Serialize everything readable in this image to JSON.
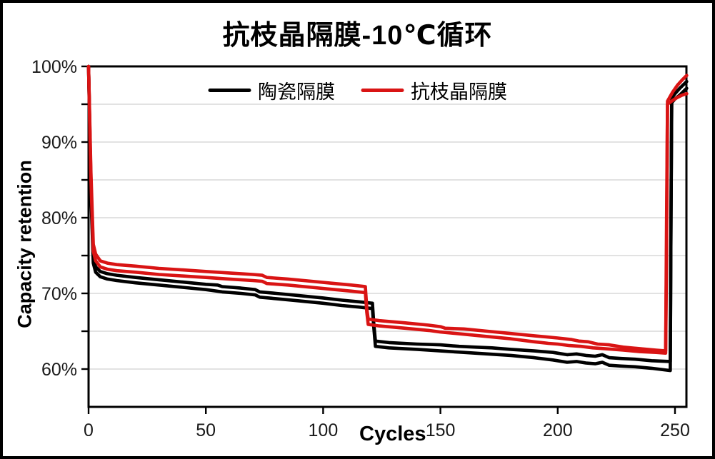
{
  "title": "抗枝晶隔膜-10℃循环",
  "legend": {
    "items": [
      {
        "label": "陶瓷隔膜",
        "color": "#000000"
      },
      {
        "label": "抗枝晶隔膜",
        "color": "#d91414"
      }
    ]
  },
  "colors": {
    "background": "#ffffff",
    "axis": "#000000",
    "gridline": "#d9d9d9",
    "black_series": "#000000",
    "red_series": "#d91414"
  },
  "chart_data": {
    "type": "line",
    "title": "抗枝晶隔膜-10℃循环",
    "xlabel": "Cycles",
    "ylabel": "Capacity retention",
    "xlim": [
      0,
      255
    ],
    "ylim": [
      55,
      100
    ],
    "x_ticks": [
      0,
      50,
      100,
      150,
      200,
      250
    ],
    "y_tick_labels": [
      {
        "value": 100,
        "label": "100%"
      },
      {
        "value": 90,
        "label": "90%"
      },
      {
        "value": 80,
        "label": "80%"
      },
      {
        "value": 70,
        "label": "70%"
      },
      {
        "value": 60,
        "label": "60%"
      }
    ],
    "grid_values": [
      95,
      90,
      85,
      80,
      75,
      70,
      65,
      60
    ],
    "axis_tick_values": [
      100,
      95,
      90,
      85,
      80,
      75,
      70,
      65,
      60
    ],
    "legend_position": "top-center",
    "grid": true,
    "series": [
      {
        "name": "陶瓷隔膜-1",
        "color": "#000000",
        "points": [
          [
            0,
            100
          ],
          [
            1,
            84
          ],
          [
            2,
            74.8
          ],
          [
            3,
            73.5
          ],
          [
            5,
            72.9
          ],
          [
            8,
            72.6
          ],
          [
            12,
            72.4
          ],
          [
            20,
            72.1
          ],
          [
            30,
            71.8
          ],
          [
            40,
            71.5
          ],
          [
            50,
            71.2
          ],
          [
            55,
            71.1
          ],
          [
            57,
            70.9
          ],
          [
            65,
            70.7
          ],
          [
            71,
            70.5
          ],
          [
            73,
            70.2
          ],
          [
            80,
            70.0
          ],
          [
            90,
            69.7
          ],
          [
            100,
            69.4
          ],
          [
            108,
            69.1
          ],
          [
            115,
            68.9
          ],
          [
            121,
            68.7
          ],
          [
            121.6,
            66.0
          ],
          [
            122.3,
            63.7
          ],
          [
            128,
            63.5
          ],
          [
            140,
            63.3
          ],
          [
            150,
            63.2
          ],
          [
            158,
            63.0
          ],
          [
            165,
            62.9
          ],
          [
            172,
            62.8
          ],
          [
            180,
            62.6
          ],
          [
            190,
            62.4
          ],
          [
            198,
            62.2
          ],
          [
            204,
            61.9
          ],
          [
            208,
            62.0
          ],
          [
            212,
            61.8
          ],
          [
            216,
            61.7
          ],
          [
            219,
            61.9
          ],
          [
            222,
            61.5
          ],
          [
            227,
            61.4
          ],
          [
            233,
            61.3
          ],
          [
            240,
            61.1
          ],
          [
            248,
            61.0
          ],
          [
            248.3,
            80
          ],
          [
            248.6,
            95.8
          ],
          [
            250,
            96.4
          ],
          [
            252,
            97.1
          ],
          [
            254,
            97.7
          ],
          [
            255,
            98.0
          ]
        ]
      },
      {
        "name": "陶瓷隔膜-2",
        "color": "#000000",
        "points": [
          [
            0,
            100
          ],
          [
            1,
            83
          ],
          [
            2,
            74.0
          ],
          [
            3,
            72.8
          ],
          [
            5,
            72.2
          ],
          [
            8,
            71.9
          ],
          [
            12,
            71.7
          ],
          [
            20,
            71.4
          ],
          [
            30,
            71.1
          ],
          [
            40,
            70.8
          ],
          [
            50,
            70.5
          ],
          [
            57,
            70.2
          ],
          [
            65,
            70.0
          ],
          [
            71,
            69.8
          ],
          [
            73,
            69.5
          ],
          [
            80,
            69.3
          ],
          [
            90,
            69.0
          ],
          [
            100,
            68.7
          ],
          [
            108,
            68.4
          ],
          [
            115,
            68.2
          ],
          [
            121,
            68.0
          ],
          [
            121.6,
            65.5
          ],
          [
            122.3,
            63.0
          ],
          [
            128,
            62.8
          ],
          [
            140,
            62.6
          ],
          [
            150,
            62.4
          ],
          [
            160,
            62.2
          ],
          [
            170,
            62.0
          ],
          [
            180,
            61.8
          ],
          [
            190,
            61.5
          ],
          [
            198,
            61.2
          ],
          [
            204,
            60.9
          ],
          [
            208,
            61.0
          ],
          [
            212,
            60.8
          ],
          [
            216,
            60.7
          ],
          [
            219,
            60.9
          ],
          [
            222,
            60.5
          ],
          [
            227,
            60.4
          ],
          [
            233,
            60.3
          ],
          [
            240,
            60.1
          ],
          [
            248,
            59.8
          ],
          [
            248.3,
            80
          ],
          [
            248.6,
            95.2
          ],
          [
            250,
            95.7
          ],
          [
            252,
            96.2
          ],
          [
            254,
            96.8
          ],
          [
            255,
            97.1
          ]
        ]
      },
      {
        "name": "抗枝晶隔膜-1",
        "color": "#d91414",
        "points": [
          [
            0,
            100
          ],
          [
            1,
            86
          ],
          [
            2,
            76.5
          ],
          [
            3,
            75.2
          ],
          [
            5,
            74.3
          ],
          [
            8,
            74.0
          ],
          [
            12,
            73.8
          ],
          [
            20,
            73.6
          ],
          [
            30,
            73.3
          ],
          [
            40,
            73.1
          ],
          [
            50,
            72.9
          ],
          [
            60,
            72.7
          ],
          [
            70,
            72.5
          ],
          [
            74,
            72.4
          ],
          [
            76,
            72.1
          ],
          [
            85,
            71.9
          ],
          [
            95,
            71.6
          ],
          [
            105,
            71.3
          ],
          [
            112,
            71.1
          ],
          [
            118,
            70.9
          ],
          [
            118.6,
            68.0
          ],
          [
            119.2,
            66.6
          ],
          [
            124,
            66.4
          ],
          [
            135,
            66.1
          ],
          [
            145,
            65.8
          ],
          [
            150,
            65.6
          ],
          [
            152,
            65.4
          ],
          [
            160,
            65.3
          ],
          [
            170,
            65.0
          ],
          [
            180,
            64.7
          ],
          [
            190,
            64.4
          ],
          [
            200,
            64.1
          ],
          [
            206,
            63.9
          ],
          [
            209,
            63.7
          ],
          [
            213,
            63.6
          ],
          [
            217,
            63.3
          ],
          [
            222,
            63.2
          ],
          [
            228,
            62.9
          ],
          [
            235,
            62.7
          ],
          [
            242,
            62.5
          ],
          [
            246,
            62.4
          ],
          [
            246.4,
            75
          ],
          [
            246.8,
            95.4
          ],
          [
            249,
            96.6
          ],
          [
            251,
            97.5
          ],
          [
            253,
            98.2
          ],
          [
            255,
            98.8
          ]
        ]
      },
      {
        "name": "抗枝晶隔膜-2",
        "color": "#d91414",
        "points": [
          [
            0,
            100
          ],
          [
            1,
            85
          ],
          [
            2,
            75.6
          ],
          [
            3,
            74.3
          ],
          [
            5,
            73.5
          ],
          [
            8,
            73.2
          ],
          [
            12,
            73.0
          ],
          [
            20,
            72.8
          ],
          [
            30,
            72.5
          ],
          [
            40,
            72.3
          ],
          [
            50,
            72.1
          ],
          [
            60,
            71.9
          ],
          [
            70,
            71.7
          ],
          [
            74,
            71.6
          ],
          [
            76,
            71.3
          ],
          [
            85,
            71.1
          ],
          [
            95,
            70.8
          ],
          [
            105,
            70.5
          ],
          [
            112,
            70.3
          ],
          [
            118,
            70.1
          ],
          [
            118.6,
            67.5
          ],
          [
            119.2,
            65.9
          ],
          [
            124,
            65.7
          ],
          [
            135,
            65.4
          ],
          [
            145,
            65.1
          ],
          [
            150,
            64.9
          ],
          [
            160,
            64.6
          ],
          [
            170,
            64.3
          ],
          [
            180,
            64.0
          ],
          [
            190,
            63.6
          ],
          [
            196,
            63.4
          ],
          [
            200,
            63.3
          ],
          [
            205,
            63.1
          ],
          [
            210,
            63.0
          ],
          [
            215,
            62.8
          ],
          [
            220,
            62.7
          ],
          [
            228,
            62.5
          ],
          [
            235,
            62.3
          ],
          [
            242,
            62.2
          ],
          [
            246,
            62.1
          ],
          [
            246.4,
            80
          ],
          [
            246.8,
            95.0
          ],
          [
            249,
            95.5
          ],
          [
            251,
            95.9
          ],
          [
            253,
            96.2
          ],
          [
            255,
            96.4
          ]
        ]
      }
    ]
  }
}
